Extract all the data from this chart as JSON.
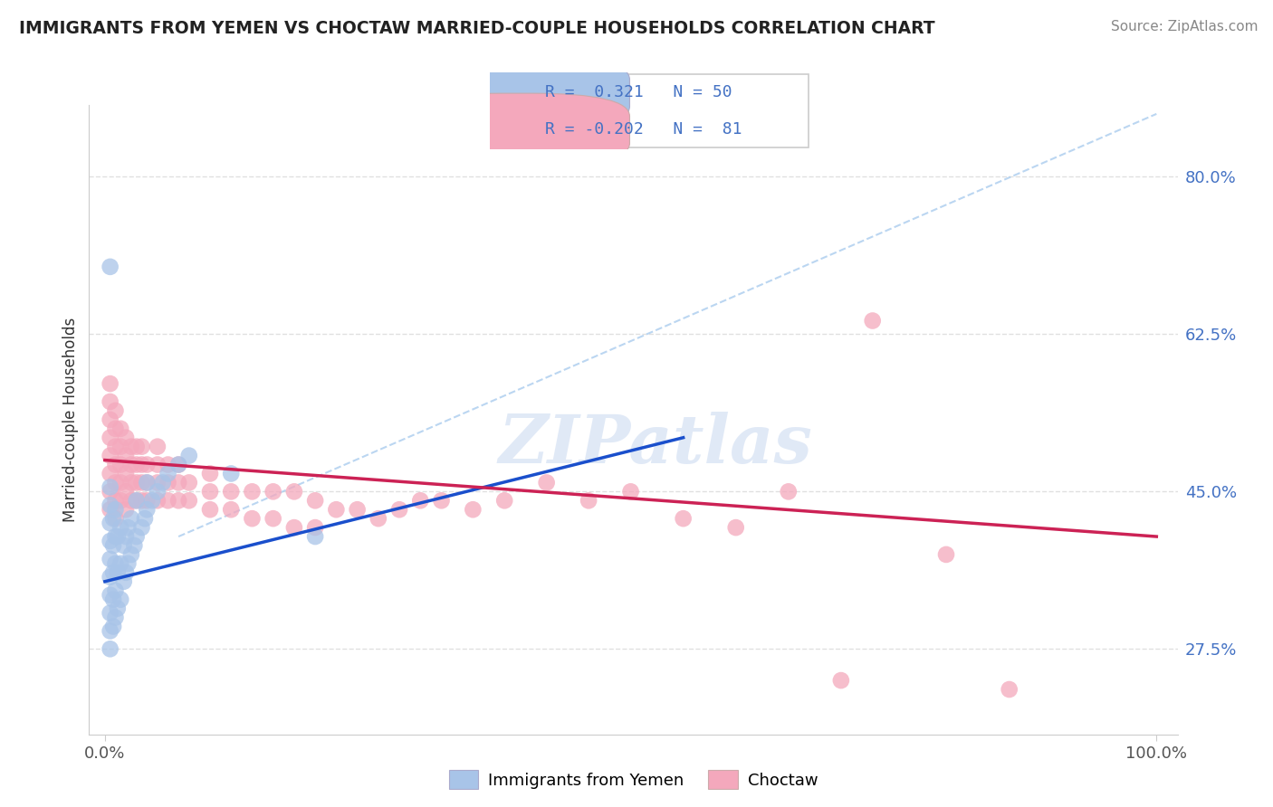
{
  "title": "IMMIGRANTS FROM YEMEN VS CHOCTAW MARRIED-COUPLE HOUSEHOLDS CORRELATION CHART",
  "source": "Source: ZipAtlas.com",
  "ylabel": "Married-couple Households",
  "xlim": [
    0.0,
    1.0
  ],
  "ylim": [
    0.18,
    0.88
  ],
  "ytick_vals": [
    0.275,
    0.45,
    0.625,
    0.8
  ],
  "ytick_labels": [
    "27.5%",
    "45.0%",
    "62.5%",
    "80.0%"
  ],
  "xtick_vals": [
    0.0,
    1.0
  ],
  "xtick_labels": [
    "0.0%",
    "100.0%"
  ],
  "blue_color": "#a8c4e8",
  "pink_color": "#f4a8bc",
  "blue_line_color": "#1a4fcc",
  "pink_line_color": "#cc2255",
  "dash_line_color": "#aaccee",
  "watermark": "ZIPatlas",
  "grid_color": "#dddddd",
  "tick_color": "#4472c4",
  "blue_x": [
    0.005,
    0.005,
    0.005,
    0.005,
    0.005,
    0.005,
    0.005,
    0.005,
    0.005,
    0.005,
    0.008,
    0.008,
    0.008,
    0.008,
    0.008,
    0.01,
    0.01,
    0.01,
    0.01,
    0.01,
    0.012,
    0.012,
    0.012,
    0.015,
    0.015,
    0.015,
    0.018,
    0.018,
    0.02,
    0.02,
    0.022,
    0.022,
    0.025,
    0.025,
    0.028,
    0.03,
    0.03,
    0.035,
    0.038,
    0.04,
    0.04,
    0.045,
    0.05,
    0.055,
    0.06,
    0.07,
    0.08,
    0.005,
    0.2,
    0.12
  ],
  "blue_y": [
    0.275,
    0.295,
    0.315,
    0.335,
    0.355,
    0.375,
    0.395,
    0.415,
    0.435,
    0.455,
    0.3,
    0.33,
    0.36,
    0.39,
    0.42,
    0.31,
    0.34,
    0.37,
    0.4,
    0.43,
    0.32,
    0.36,
    0.4,
    0.33,
    0.37,
    0.41,
    0.35,
    0.39,
    0.36,
    0.4,
    0.37,
    0.41,
    0.38,
    0.42,
    0.39,
    0.4,
    0.44,
    0.41,
    0.42,
    0.43,
    0.46,
    0.44,
    0.45,
    0.46,
    0.47,
    0.48,
    0.49,
    0.7,
    0.4,
    0.47
  ],
  "pink_x": [
    0.005,
    0.005,
    0.005,
    0.005,
    0.005,
    0.005,
    0.005,
    0.005,
    0.01,
    0.01,
    0.01,
    0.01,
    0.01,
    0.01,
    0.01,
    0.015,
    0.015,
    0.015,
    0.015,
    0.015,
    0.02,
    0.02,
    0.02,
    0.02,
    0.02,
    0.025,
    0.025,
    0.025,
    0.025,
    0.03,
    0.03,
    0.03,
    0.03,
    0.035,
    0.035,
    0.035,
    0.035,
    0.04,
    0.04,
    0.04,
    0.05,
    0.05,
    0.05,
    0.05,
    0.06,
    0.06,
    0.06,
    0.07,
    0.07,
    0.07,
    0.08,
    0.08,
    0.1,
    0.1,
    0.1,
    0.12,
    0.12,
    0.14,
    0.14,
    0.16,
    0.16,
    0.18,
    0.18,
    0.2,
    0.2,
    0.22,
    0.24,
    0.26,
    0.28,
    0.3,
    0.32,
    0.35,
    0.38,
    0.42,
    0.46,
    0.5,
    0.55,
    0.6,
    0.65,
    0.7,
    0.73,
    0.8,
    0.86
  ],
  "pink_y": [
    0.43,
    0.45,
    0.47,
    0.49,
    0.51,
    0.53,
    0.55,
    0.57,
    0.42,
    0.44,
    0.46,
    0.48,
    0.5,
    0.52,
    0.54,
    0.44,
    0.46,
    0.48,
    0.5,
    0.52,
    0.43,
    0.45,
    0.47,
    0.49,
    0.51,
    0.44,
    0.46,
    0.48,
    0.5,
    0.44,
    0.46,
    0.48,
    0.5,
    0.44,
    0.46,
    0.48,
    0.5,
    0.44,
    0.46,
    0.48,
    0.44,
    0.46,
    0.48,
    0.5,
    0.44,
    0.46,
    0.48,
    0.44,
    0.46,
    0.48,
    0.44,
    0.46,
    0.43,
    0.45,
    0.47,
    0.43,
    0.45,
    0.42,
    0.45,
    0.42,
    0.45,
    0.41,
    0.45,
    0.41,
    0.44,
    0.43,
    0.43,
    0.42,
    0.43,
    0.44,
    0.44,
    0.43,
    0.44,
    0.46,
    0.44,
    0.45,
    0.42,
    0.41,
    0.45,
    0.24,
    0.64,
    0.38,
    0.23
  ],
  "blue_line_x": [
    0.0,
    0.55
  ],
  "blue_line_y": [
    0.35,
    0.51
  ],
  "pink_line_x": [
    0.0,
    1.0
  ],
  "pink_line_y": [
    0.485,
    0.4
  ],
  "dash_line_x": [
    0.07,
    1.0
  ],
  "dash_line_y": [
    0.4,
    0.87
  ]
}
